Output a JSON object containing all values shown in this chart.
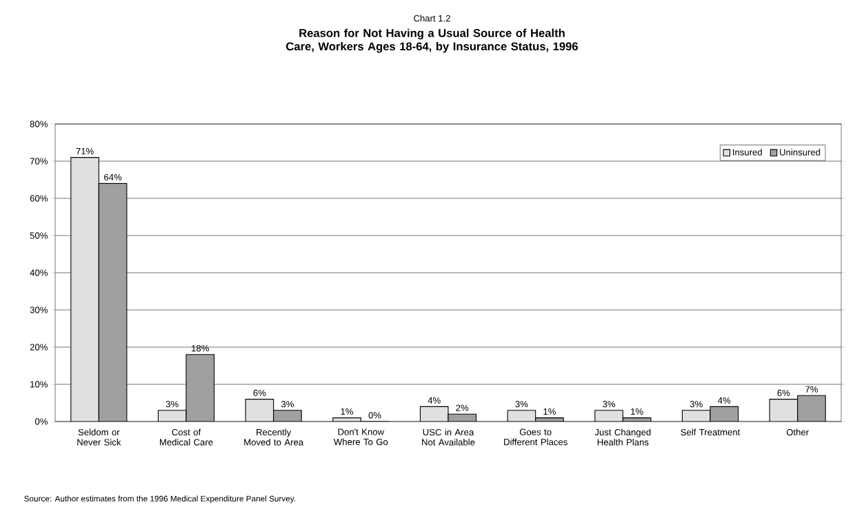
{
  "chart_data": {
    "type": "bar",
    "subtitle": "Chart 1.2",
    "title": "Reason for Not Having a Usual Source of Health Care, Workers Ages 18-64, by Insurance Status, 1996",
    "categories": [
      "Seldom or Never Sick",
      "Cost of Medical Care",
      "Recently Moved to Area",
      "Don't Know Where To Go",
      "USC in Area Not Available",
      "Goes to Different Places",
      "Just Changed Health Plans",
      "Self Treatment",
      "Other"
    ],
    "series": [
      {
        "name": "Insured",
        "color": "#e0e0e0",
        "values": [
          71,
          3,
          6,
          1,
          4,
          3,
          3,
          3,
          6
        ],
        "value_labels": [
          "71%",
          "3%",
          "6%",
          "1%",
          "4%",
          "3%",
          "3%",
          "3%",
          "6%"
        ]
      },
      {
        "name": "Uninsured",
        "color": "#a0a0a0",
        "values": [
          64,
          18,
          3,
          0,
          2,
          1,
          1,
          4,
          7
        ],
        "value_labels": [
          "64%",
          "18%",
          "3%",
          "0%",
          "2%",
          "1%",
          "1%",
          "4%",
          "7%"
        ]
      }
    ],
    "ylim": [
      0,
      80
    ],
    "yticks": [
      {
        "value": 0,
        "label": "0%"
      },
      {
        "value": 10,
        "label": "10%"
      },
      {
        "value": 20,
        "label": "20%"
      },
      {
        "value": 30,
        "label": "30%"
      },
      {
        "value": 40,
        "label": "40%"
      },
      {
        "value": 50,
        "label": "50%"
      },
      {
        "value": 60,
        "label": "60%"
      },
      {
        "value": 70,
        "label": "70%"
      },
      {
        "value": 80,
        "label": "80%"
      }
    ],
    "grid": "y",
    "legend": "top right",
    "annotations": [
      "Source: Author estimates from the 1996 Medical Expenditure Panel Survey."
    ]
  }
}
